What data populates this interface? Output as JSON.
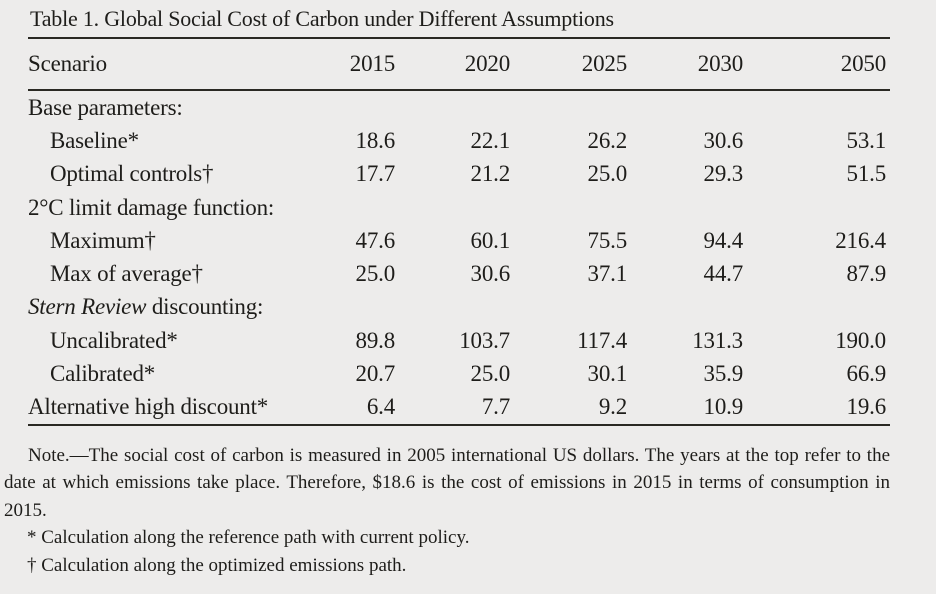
{
  "title": "Table 1. Global Social Cost of Carbon under Different Assumptions",
  "columns": [
    "Scenario",
    "2015",
    "2020",
    "2025",
    "2030",
    "2050"
  ],
  "rows": [
    {
      "indent": false,
      "parts": [
        {
          "text": "Base parameters:",
          "italic": false
        }
      ],
      "values": [
        "",
        "",
        "",
        "",
        ""
      ]
    },
    {
      "indent": true,
      "parts": [
        {
          "text": "Baseline*",
          "italic": false
        }
      ],
      "values": [
        "18.6",
        "22.1",
        "26.2",
        "30.6",
        "53.1"
      ]
    },
    {
      "indent": true,
      "parts": [
        {
          "text": "Optimal controls†",
          "italic": false
        }
      ],
      "values": [
        "17.7",
        "21.2",
        "25.0",
        "29.3",
        "51.5"
      ]
    },
    {
      "indent": false,
      "parts": [
        {
          "text": "2°C limit damage function:",
          "italic": false
        }
      ],
      "values": [
        "",
        "",
        "",
        "",
        ""
      ]
    },
    {
      "indent": true,
      "parts": [
        {
          "text": "Maximum†",
          "italic": false
        }
      ],
      "values": [
        "47.6",
        "60.1",
        "75.5",
        "94.4",
        "216.4"
      ]
    },
    {
      "indent": true,
      "parts": [
        {
          "text": "Max of average†",
          "italic": false
        }
      ],
      "values": [
        "25.0",
        "30.6",
        "37.1",
        "44.7",
        "87.9"
      ]
    },
    {
      "indent": false,
      "parts": [
        {
          "text": "Stern Review",
          "italic": true
        },
        {
          "text": " discounting:",
          "italic": false
        }
      ],
      "values": [
        "",
        "",
        "",
        "",
        ""
      ]
    },
    {
      "indent": true,
      "parts": [
        {
          "text": "Uncalibrated*",
          "italic": false
        }
      ],
      "values": [
        "89.8",
        "103.7",
        "117.4",
        "131.3",
        "190.0"
      ]
    },
    {
      "indent": true,
      "parts": [
        {
          "text": "Calibrated*",
          "italic": false
        }
      ],
      "values": [
        "20.7",
        "25.0",
        "30.1",
        "35.9",
        "66.9"
      ]
    },
    {
      "indent": false,
      "parts": [
        {
          "text": "Alternative high discount*",
          "italic": false
        }
      ],
      "values": [
        "6.4",
        "7.7",
        "9.2",
        "10.9",
        "19.6"
      ]
    }
  ],
  "note": "Note.—The social cost of carbon is measured in 2005 international US dollars. The years at the top refer to the date at which emissions take place. Therefore, $18.6 is the cost of emissions in 2015 in terms of consumption in 2015.",
  "footnotes": [
    "* Calculation along the reference path with current policy.",
    "† Calculation along the optimized emissions path."
  ],
  "colors": {
    "background": "#edeceb",
    "text": "#1e1d1a",
    "rule": "#2a2923"
  }
}
